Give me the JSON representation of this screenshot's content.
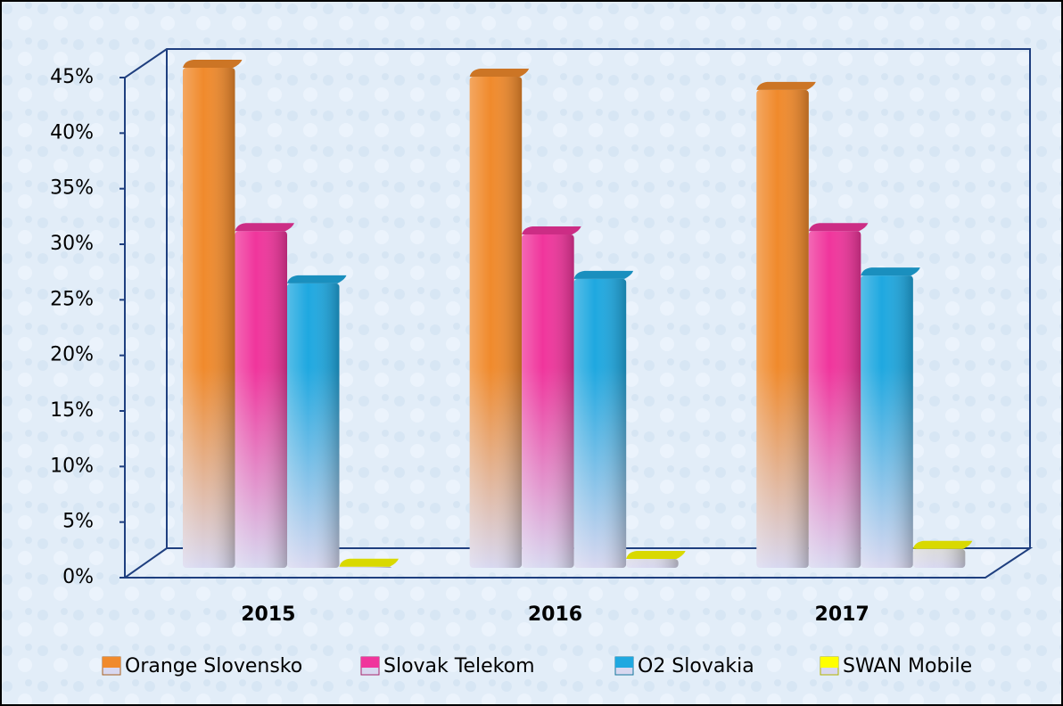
{
  "chart_data": {
    "type": "bar",
    "categories": [
      "2015",
      "2016",
      "2017"
    ],
    "series": [
      {
        "name": "Orange Slovensko",
        "color": "#f08a2c",
        "values": [
          45,
          44.2,
          43
        ]
      },
      {
        "name": "Slovak Telekom",
        "color": "#f0359c",
        "values": [
          30.3,
          30,
          30.3
        ]
      },
      {
        "name": "O2 Slovakia",
        "color": "#1fa8e0",
        "values": [
          25.6,
          26,
          26.3
        ]
      },
      {
        "name": "SWAN Mobile",
        "color": "#ffff00",
        "values": [
          0.1,
          0.8,
          1.7
        ]
      }
    ],
    "ylim": [
      0,
      45
    ],
    "yticks": [
      {
        "value": 0,
        "label": "0%"
      },
      {
        "value": 5,
        "label": "5%"
      },
      {
        "value": 10,
        "label": "10%"
      },
      {
        "value": 15,
        "label": "15%"
      },
      {
        "value": 20,
        "label": "20%"
      },
      {
        "value": 25,
        "label": "25%"
      },
      {
        "value": 30,
        "label": "30%"
      },
      {
        "value": 35,
        "label": "35%"
      },
      {
        "value": 40,
        "label": "40%"
      },
      {
        "value": 45,
        "label": "45%"
      }
    ],
    "legend": "bottom"
  }
}
